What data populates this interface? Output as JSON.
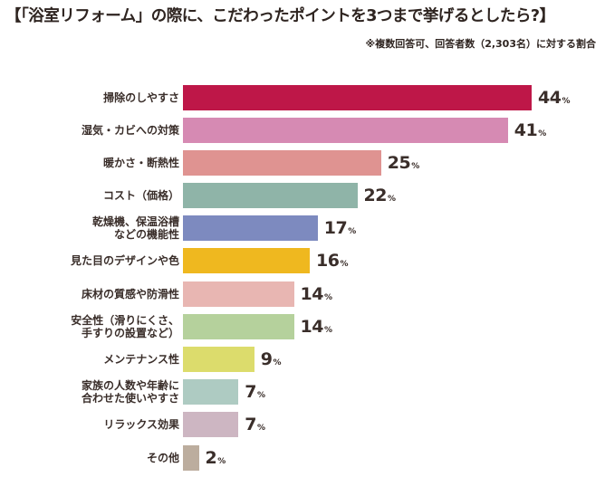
{
  "title": "【「浴室リフォーム」の際に、こだわったポイントを3つまで挙げるとしたら?】",
  "note": "※複数回答可、回答者数（2,303名）に対する割合",
  "percent_suffix": "%",
  "chart_data": {
    "type": "bar",
    "orientation": "horizontal",
    "title": "【「浴室リフォーム」の際に、こだわったポイントを3つまで挙げるとしたら?】",
    "subtitle": "※複数回答可、回答者数（2,303名）に対する割合",
    "xlabel": "",
    "ylabel": "",
    "unit": "%",
    "grid": false,
    "legend": null,
    "categories": [
      "掃除のしやすさ",
      "湿気・カビへの対策",
      "暖かさ・断熱性",
      "コスト（価格）",
      "乾燥機、保温浴槽などの機能性",
      "見た目のデザインや色",
      "床材の質感や防滑性",
      "安全性（滑りにくさ、手すりの設置など）",
      "メンテナンス性",
      "家族の人数や年齢に合わせた使いやすさ",
      "リラックス効果",
      "その他"
    ],
    "values": [
      44,
      41,
      25,
      22,
      17,
      16,
      14,
      14,
      9,
      7,
      7,
      2
    ],
    "colors": [
      "#be1748",
      "#d68ab3",
      "#df9391",
      "#8fb4a8",
      "#7d8abf",
      "#efb81f",
      "#e8b6b2",
      "#b5d19c",
      "#dcdc6c",
      "#aecbc2",
      "#cdb6c2",
      "#bcad9e"
    ]
  },
  "rows": [
    {
      "label_lines": [
        "掃除のしやすさ"
      ],
      "value": "44",
      "color": "#be1748"
    },
    {
      "label_lines": [
        "湿気・カビへの対策"
      ],
      "value": "41",
      "color": "#d68ab3"
    },
    {
      "label_lines": [
        "暖かさ・断熱性"
      ],
      "value": "25",
      "color": "#df9391"
    },
    {
      "label_lines": [
        "コスト（価格）"
      ],
      "value": "22",
      "color": "#8fb4a8"
    },
    {
      "label_lines": [
        "乾燥機、保温浴槽",
        "などの機能性"
      ],
      "value": "17",
      "color": "#7d8abf"
    },
    {
      "label_lines": [
        "見た目のデザインや色"
      ],
      "value": "16",
      "color": "#efb81f"
    },
    {
      "label_lines": [
        "床材の質感や防滑性"
      ],
      "value": "14",
      "color": "#e8b6b2"
    },
    {
      "label_lines": [
        "安全性（滑りにくさ、",
        "手すりの設置など）"
      ],
      "value": "14",
      "color": "#b5d19c"
    },
    {
      "label_lines": [
        "メンテナンス性"
      ],
      "value": "9",
      "color": "#dcdc6c"
    },
    {
      "label_lines": [
        "家族の人数や年齢に",
        "合わせた使いやすさ"
      ],
      "value": "7",
      "color": "#aecbc2"
    },
    {
      "label_lines": [
        "リラックス効果"
      ],
      "value": "7",
      "color": "#cdb6c2"
    },
    {
      "label_lines": [
        "その他"
      ],
      "value": "2",
      "color": "#bcad9e"
    }
  ]
}
